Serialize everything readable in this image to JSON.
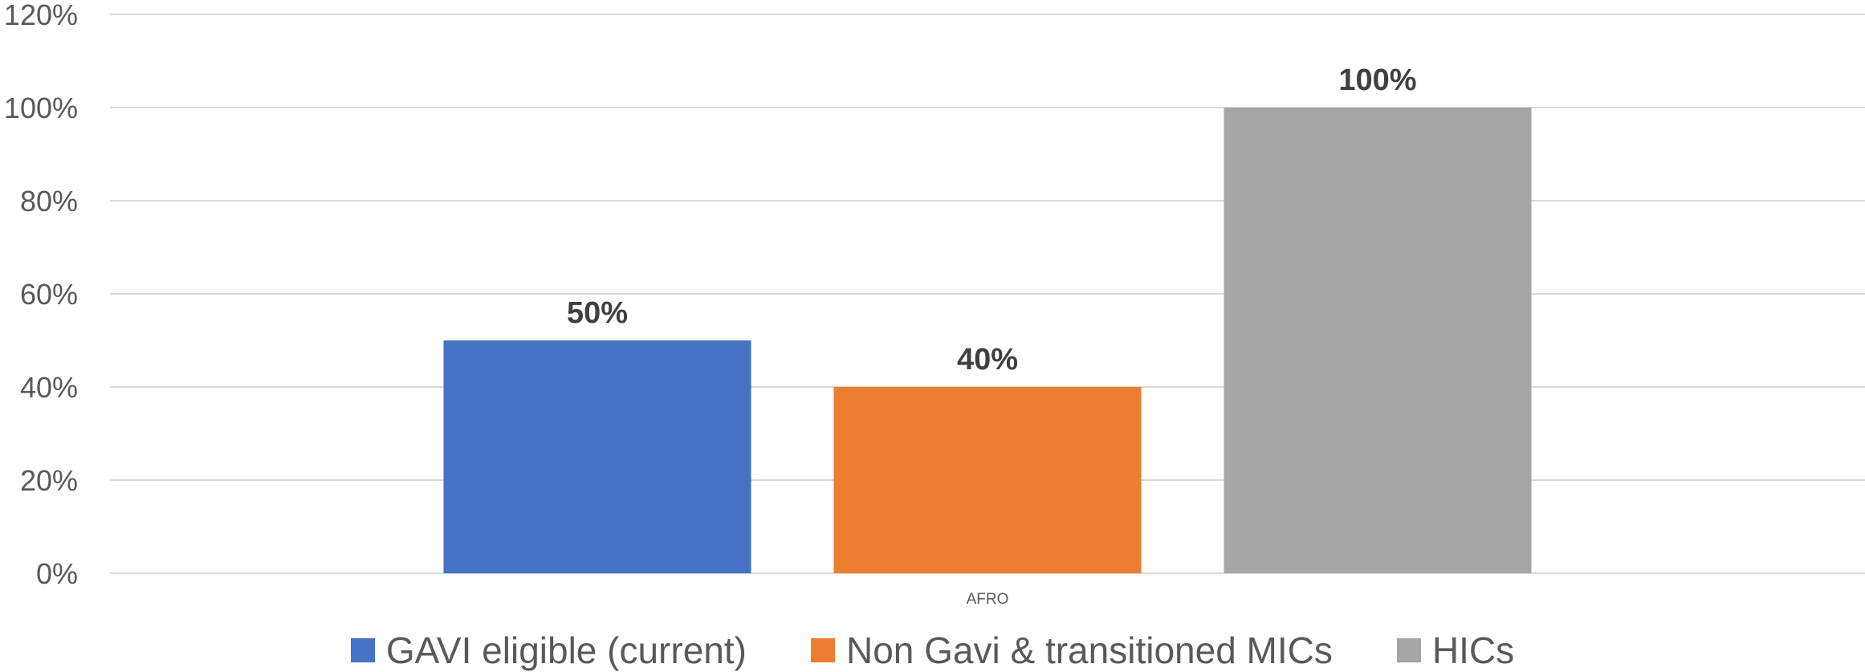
{
  "chart_data": {
    "type": "bar",
    "categories": [
      "AFRO"
    ],
    "series": [
      {
        "name": "GAVI eligible (current)",
        "values": [
          50
        ],
        "color": "#4472C4",
        "data_label": "50%"
      },
      {
        "name": "Non Gavi & transitioned MICs",
        "values": [
          40
        ],
        "color": "#ED7D31",
        "data_label": "40%"
      },
      {
        "name": "HICs",
        "values": [
          100
        ],
        "color": "#A5A5A5",
        "data_label": "100%"
      }
    ],
    "ylim": [
      0,
      120
    ],
    "yticks": [
      0,
      20,
      40,
      60,
      80,
      100,
      120
    ],
    "ytick_labels": [
      "0%",
      "20%",
      "40%",
      "60%",
      "80%",
      "100%",
      "120%"
    ],
    "title": "",
    "xlabel": "",
    "ylabel": "",
    "grid": true,
    "legend_position": "bottom",
    "gridline_color": "#D9D9D9"
  }
}
